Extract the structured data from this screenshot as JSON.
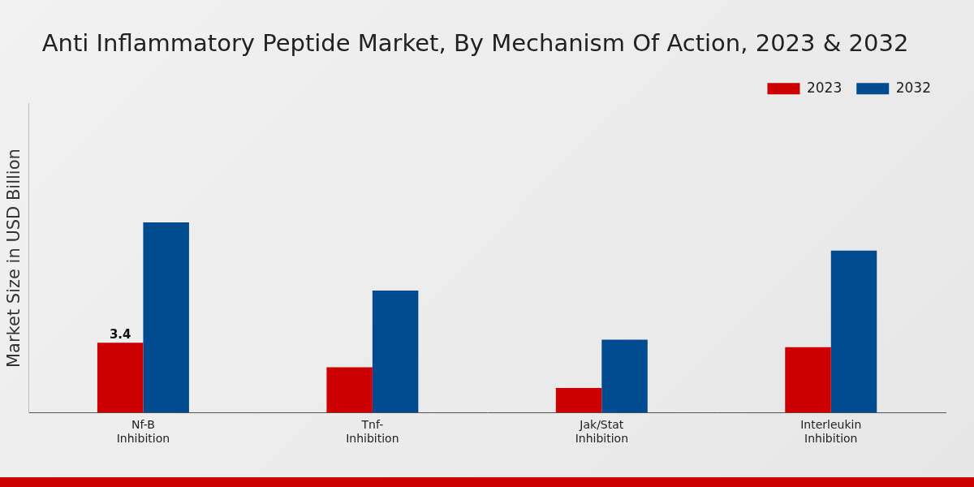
{
  "chart_data": {
    "type": "bar",
    "title": "Anti Inflammatory Peptide Market, By Mechanism Of Action, 2023 & 2032",
    "y_label": "Market Size in USD Billion",
    "categories": [
      "Nf-B Inhibition",
      "Tnf- Inhibition",
      "Jak/Stat Inhibition",
      "Interleukin Inhibition"
    ],
    "series": [
      {
        "name": "2023",
        "color": "#cc0000",
        "values": [
          3.4,
          2.2,
          1.2,
          3.18
        ],
        "value_labels": [
          "3.4",
          null,
          null,
          null
        ]
      },
      {
        "name": "2032",
        "color": "#004a8f",
        "values": [
          9.24,
          5.93,
          3.54,
          7.87
        ]
      }
    ],
    "ylim": [
      0,
      15
    ],
    "tick_labels": "x",
    "grid": false,
    "legend": "top-right"
  }
}
